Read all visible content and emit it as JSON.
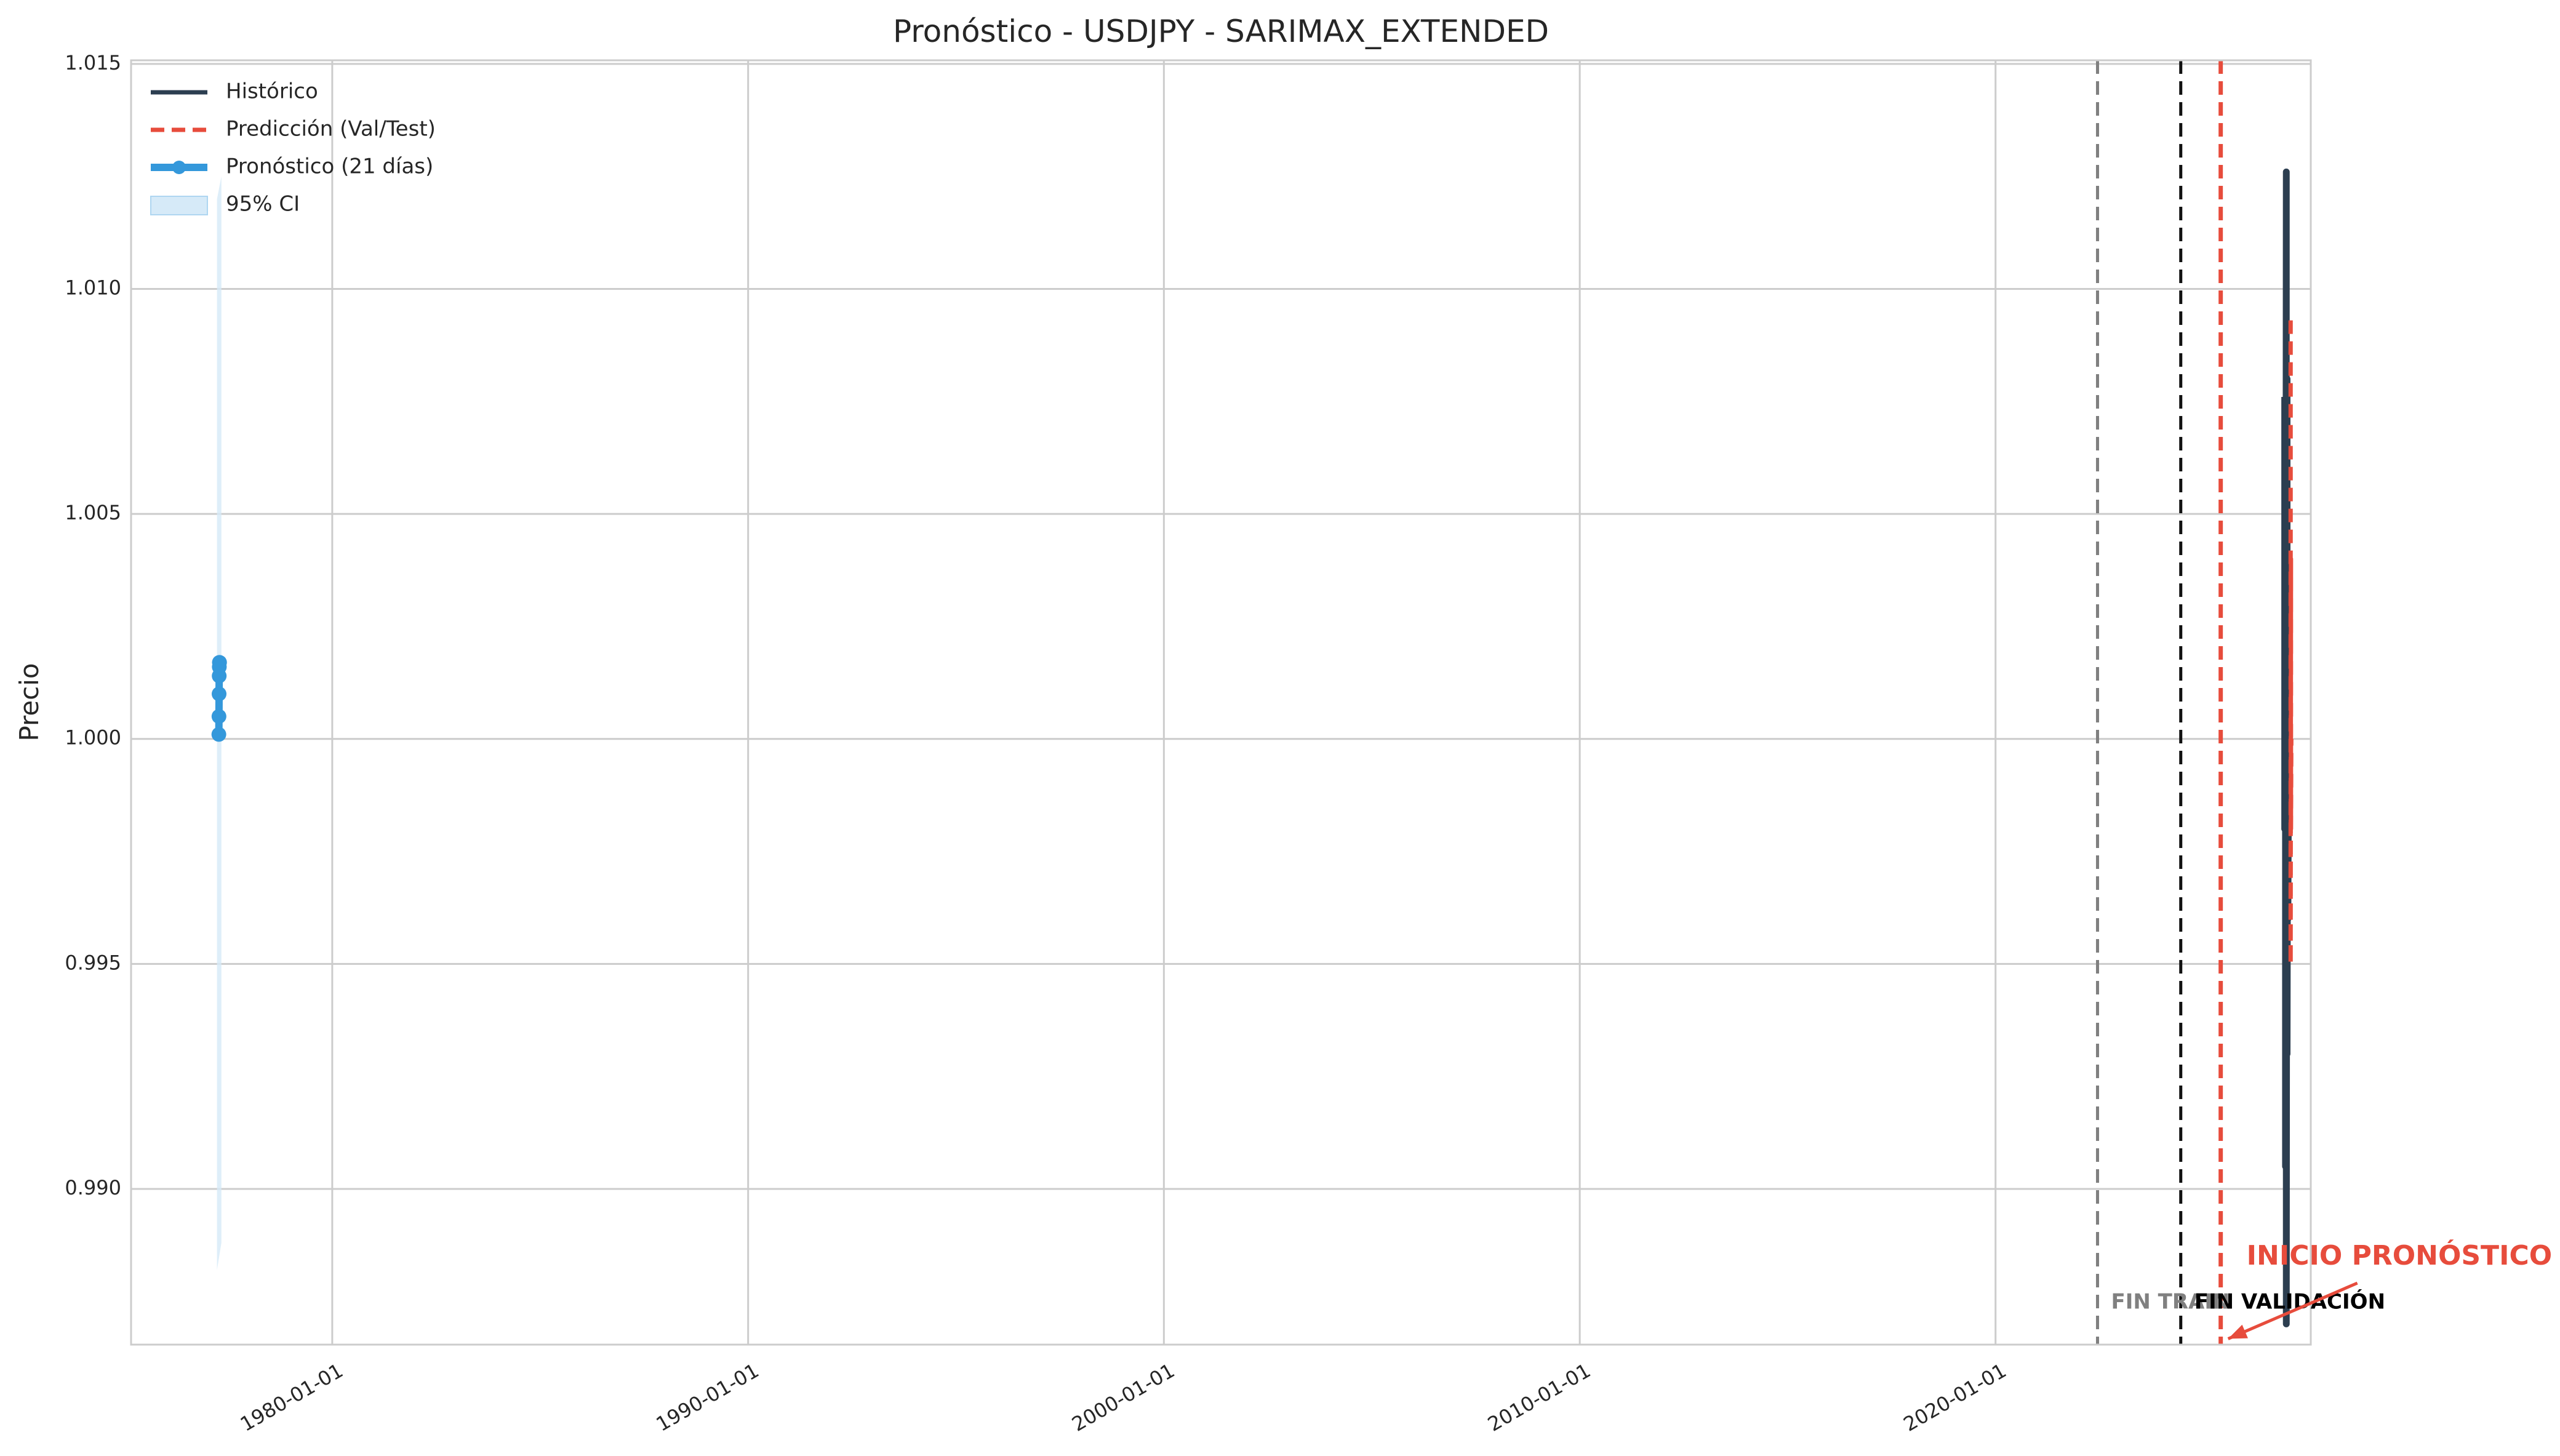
{
  "chart_data": {
    "type": "line",
    "title": "Pronóstico - USDJPY - SARIMAX_EXTENDED",
    "xlabel": "",
    "ylabel": "Precio",
    "xlim": [
      "1975-03-01",
      "2027-08-01"
    ],
    "ylim": [
      0.98654,
      1.01508
    ],
    "x_ticks": [
      "1980-01-01",
      "1990-01-01",
      "2000-01-01",
      "2010-01-01",
      "2020-01-01"
    ],
    "y_ticks": [
      0.99,
      0.995,
      1.0,
      1.005,
      1.01,
      1.015
    ],
    "y_tick_labels": [
      "0.990",
      "0.995",
      "1.000",
      "1.005",
      "1.010",
      "1.015"
    ],
    "grid": true,
    "legend_position": "top-left",
    "series": [
      {
        "name": "Histórico",
        "style": "solid",
        "color": "#2c3e50",
        "x": [
          "2026-12-15",
          "2026-12-15",
          "2026-12-22",
          "2026-12-22",
          "2026-12-29",
          "2026-12-29",
          "2027-01-05",
          "2027-01-05",
          "2027-01-12",
          "2027-01-12",
          "2027-01-19"
        ],
        "y": [
          1.0076,
          0.998,
          1.0041,
          0.9905,
          1.0126,
          0.987,
          1.008,
          0.993,
          1.002,
          0.996,
          1.0
        ]
      },
      {
        "name": "Predicción (Val/Test)",
        "style": "dashed",
        "color": "#e74c3c",
        "x": [
          "2027-02-05",
          "2027-02-05",
          "2027-02-08",
          "2027-02-08",
          "2027-02-11"
        ],
        "y": [
          1.0093,
          0.995,
          1.004,
          0.998,
          1.0
        ]
      },
      {
        "name": "Pronóstico (21 días)",
        "style": "solid-markers",
        "color": "#3498db",
        "x": [
          "1977-04-10",
          "1977-04-11",
          "1977-04-12",
          "1977-04-13",
          "1977-04-14",
          "1977-04-15",
          "1977-04-16"
        ],
        "y": [
          1.0001,
          1.0005,
          1.001,
          1.0014,
          1.0016,
          1.0017,
          1.0017
        ]
      },
      {
        "name": "95% CI",
        "style": "band",
        "color": "#d6eaf8",
        "x": [
          "1977-04-10",
          "1977-04-16"
        ],
        "upper": [
          1.012,
          1.0125
        ],
        "lower": [
          0.9882,
          0.9888
        ]
      }
    ],
    "vertical_lines": [
      {
        "x": "2022-06-15",
        "color": "#808080",
        "style": "dashed",
        "label": "FIN TRAIN"
      },
      {
        "x": "2024-06-15",
        "color": "#111111",
        "style": "dashed",
        "label": "FIN VALIDACIÓN"
      },
      {
        "x": "2025-06-01",
        "color": "#e74c3c",
        "style": "dashed",
        "label": ""
      }
    ],
    "annotations": [
      {
        "text": "INICIO PRONÓSTICO",
        "color": "#e74c3c",
        "arrow_to_x": "2025-06-01",
        "arrow_to_y": 0.98656
      }
    ]
  }
}
